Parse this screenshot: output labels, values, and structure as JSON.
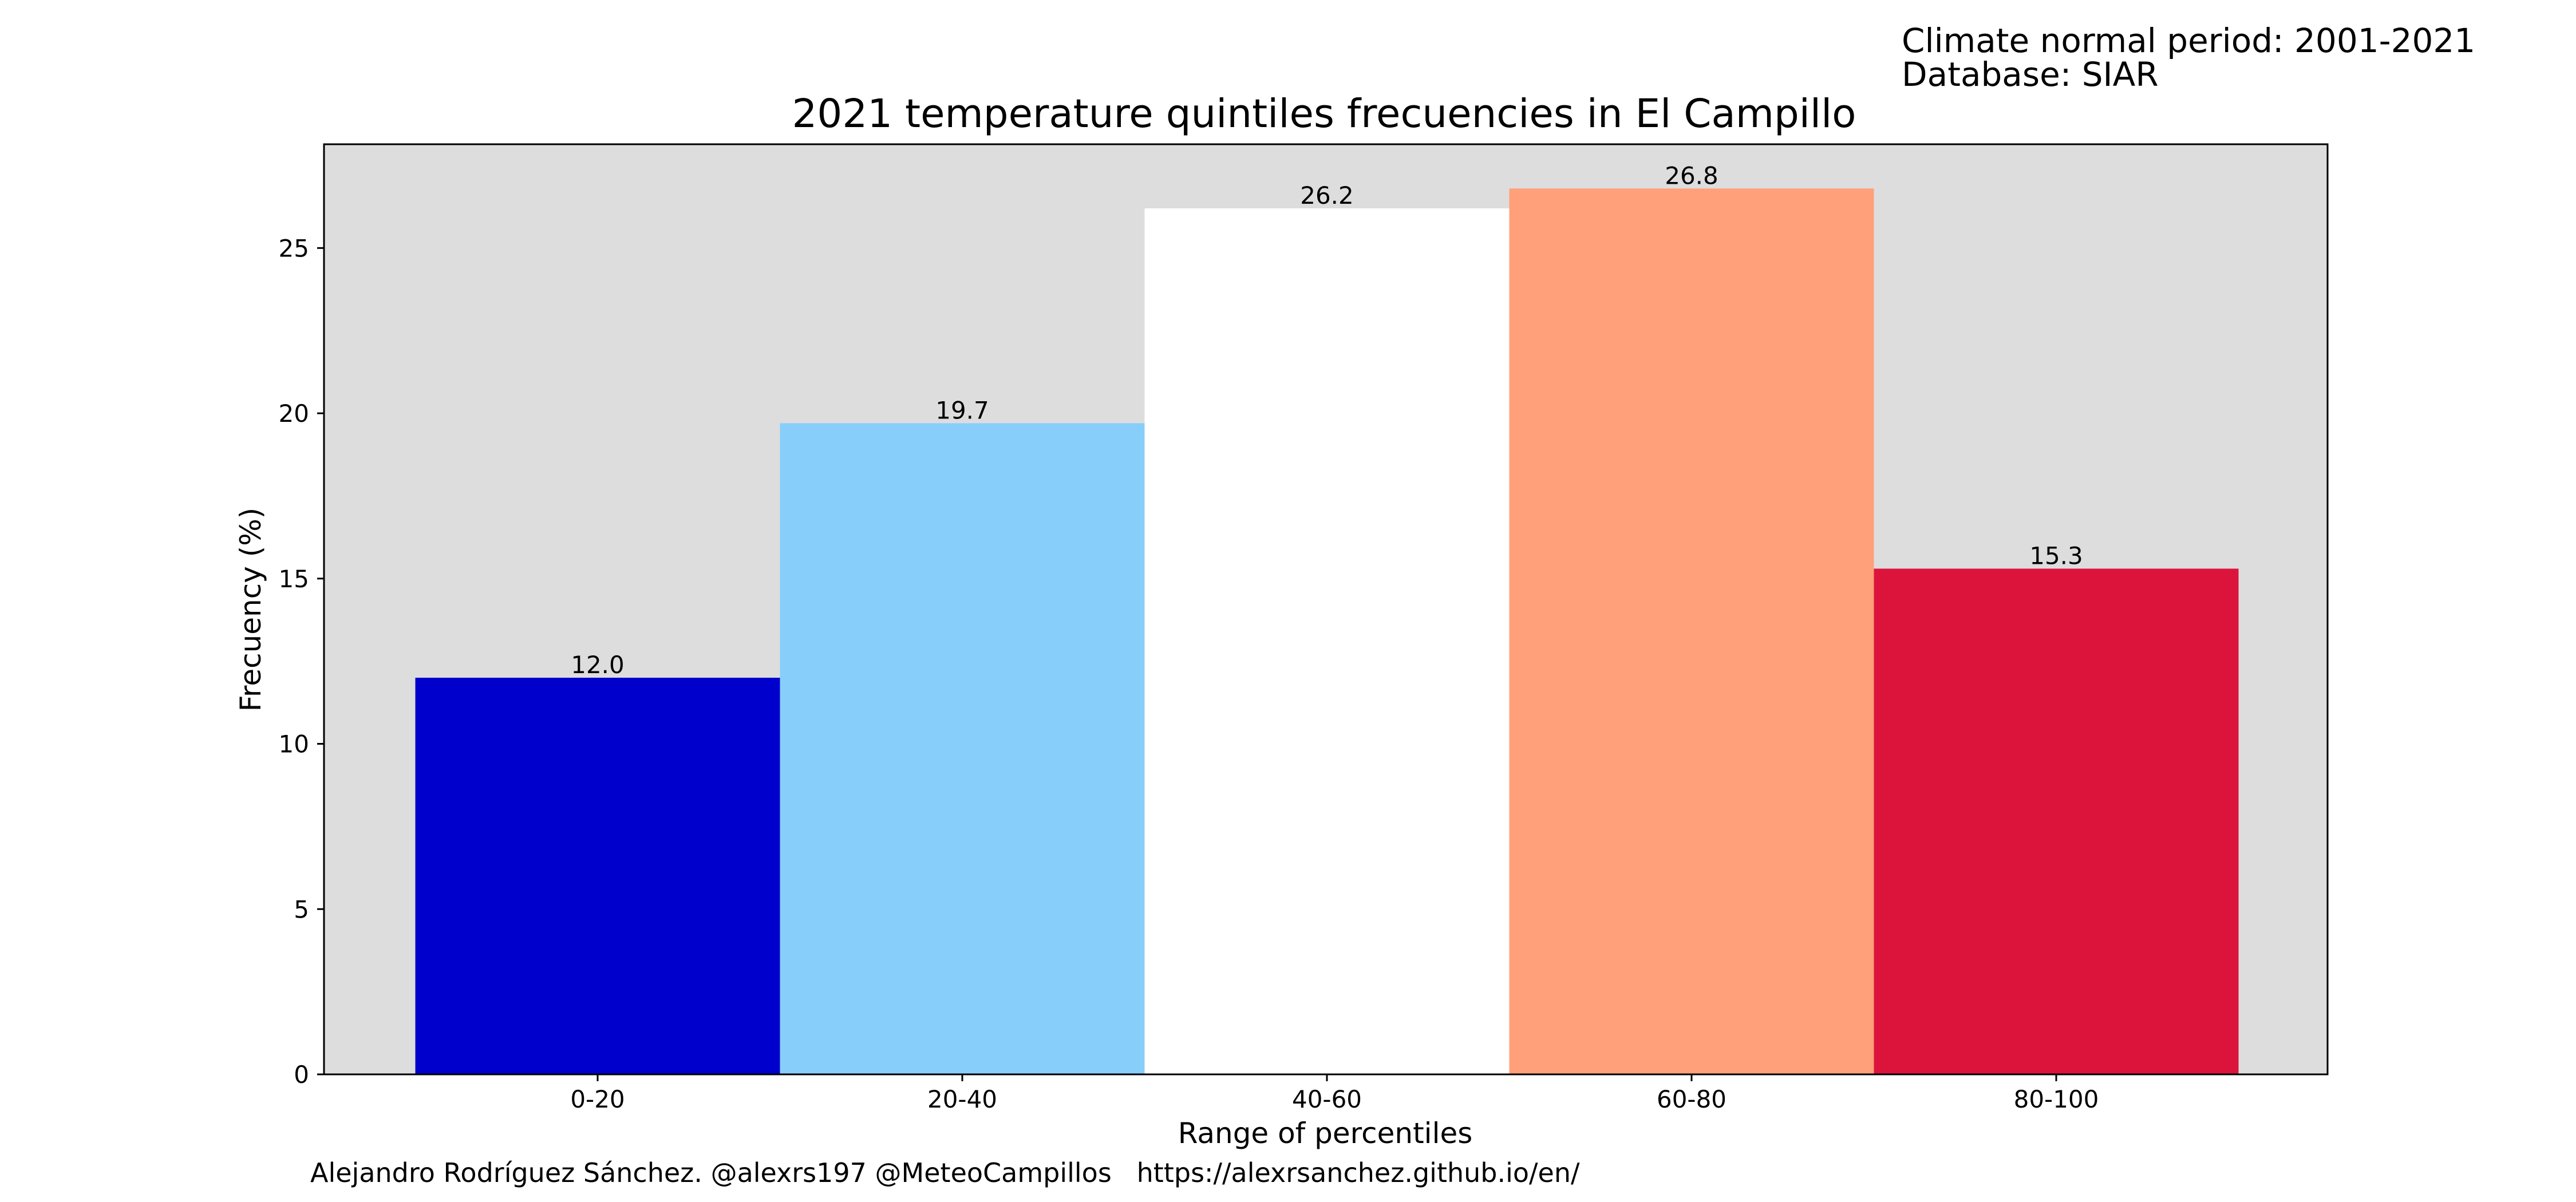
{
  "header": {
    "info_line_1": "Climate normal period: 2001-2021",
    "info_line_2": "Database: SIAR"
  },
  "footer": {
    "credit": "Alejandro Rodríguez Sánchez. @alexrs197 @MeteoCampillos   https://alexrsanchez.github.io/en/"
  },
  "chart_data": {
    "type": "bar",
    "title": "2021 temperature quintiles frecuencies in El Campillo",
    "xlabel": "Range of percentiles",
    "ylabel": "Frecuency (%)",
    "categories": [
      "0-20",
      "20-40",
      "40-60",
      "60-80",
      "80-100"
    ],
    "values": [
      12.0,
      19.7,
      26.2,
      26.8,
      15.3
    ],
    "value_labels": [
      "12.0",
      "19.7",
      "26.2",
      "26.8",
      "15.3"
    ],
    "bar_colors": [
      "#0000cd",
      "#87cefa",
      "#ffffff",
      "#ffa07a",
      "#dc143c"
    ],
    "plot_background": "#dddddd",
    "ylim": [
      0,
      28.14
    ],
    "yticks": [
      0,
      5,
      10,
      15,
      20,
      25
    ],
    "grid": false,
    "legend": "none"
  }
}
